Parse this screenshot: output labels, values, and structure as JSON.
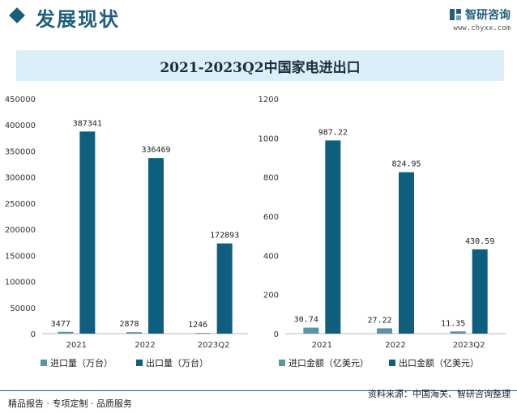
{
  "header": {
    "section_title": "发展现状",
    "brand_name": "智研咨询",
    "brand_url": "www.chyxx.com"
  },
  "chart_title": "2021-2023Q2中国家电进出口",
  "footer": {
    "left": "精品报告 · 专项定制 · 品质服务",
    "right": "资料来源：中国海关、智研咨询整理"
  },
  "colors": {
    "import": "#5b93a8",
    "export": "#0e5f7e",
    "title_bar": "#dceef7",
    "brand": "#1e5e7e"
  },
  "chart_data": [
    {
      "type": "bar",
      "categories": [
        "2021",
        "2022",
        "2023Q2"
      ],
      "series": [
        {
          "name": "进口量（万台）",
          "values": [
            3477,
            2878,
            1246
          ]
        },
        {
          "name": "出口量（万台）",
          "values": [
            387341,
            336469,
            172893
          ]
        }
      ],
      "ylim": [
        0,
        450000
      ],
      "yticks": [
        "0",
        "50000",
        "100000",
        "150000",
        "200000",
        "250000",
        "300000",
        "350000",
        "400000",
        "450000"
      ],
      "data_labels": [
        [
          "3477",
          "2878",
          "1246"
        ],
        [
          "387341",
          "336469",
          "172893"
        ]
      ],
      "legend": "bottom",
      "grid": false
    },
    {
      "type": "bar",
      "categories": [
        "2021",
        "2022",
        "2023Q2"
      ],
      "series": [
        {
          "name": "进口金额（亿美元）",
          "values": [
            30.74,
            27.22,
            11.35
          ]
        },
        {
          "name": "出口金额（亿美元）",
          "values": [
            987.22,
            824.95,
            430.59
          ]
        }
      ],
      "ylim": [
        0,
        1200
      ],
      "yticks": [
        "0",
        "200",
        "400",
        "600",
        "800",
        "1000",
        "1200"
      ],
      "data_labels": [
        [
          "30.74",
          "27.22",
          "11.35"
        ],
        [
          "987.22",
          "824.95",
          "430.59"
        ]
      ],
      "legend": "bottom",
      "grid": false
    }
  ]
}
